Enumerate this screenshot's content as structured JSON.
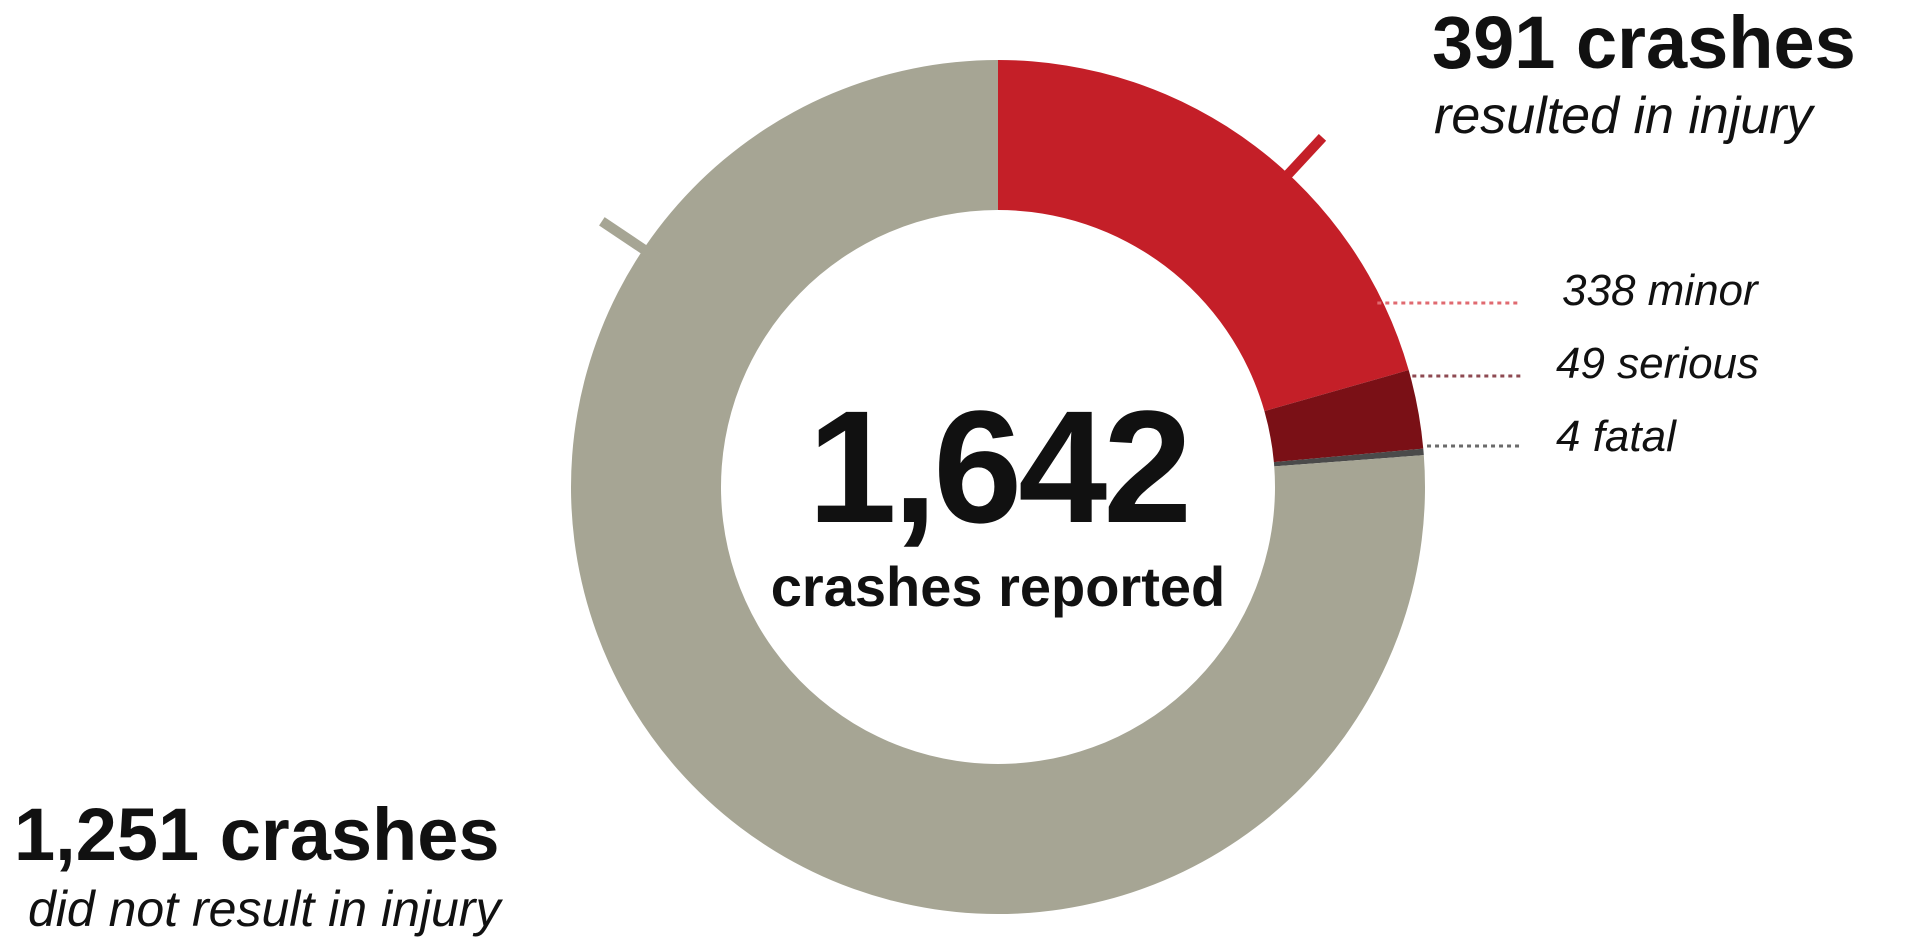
{
  "chart_data": {
    "type": "pie",
    "variant": "donut",
    "total": 1642,
    "center": {
      "value": "1,642",
      "label": "crashes reported"
    },
    "slices": [
      {
        "name": "338 minor",
        "value": 338,
        "color": "#c41f28"
      },
      {
        "name": "49 serious",
        "value": 49,
        "color": "#7a1016"
      },
      {
        "name": "4 fatal",
        "value": 4,
        "color": "#4a4a4a"
      },
      {
        "name": "1,251 crashes",
        "value": 1251,
        "color": "#a6a594"
      }
    ],
    "annotations": {
      "injury": {
        "headline": "391 crashes",
        "sub": "resulted in injury",
        "value": 391,
        "color": "#c41f28"
      },
      "no_injury": {
        "headline": "1,251 crashes",
        "sub": "did not result in injury",
        "value": 1251,
        "color": "#a6a594"
      },
      "minor": {
        "label": "338 minor",
        "leader_color": "#e06a70"
      },
      "serious": {
        "label": "49 serious",
        "leader_color": "#8e4a52"
      },
      "fatal": {
        "label": "4 fatal",
        "leader_color": "#6a6a6a"
      }
    }
  }
}
